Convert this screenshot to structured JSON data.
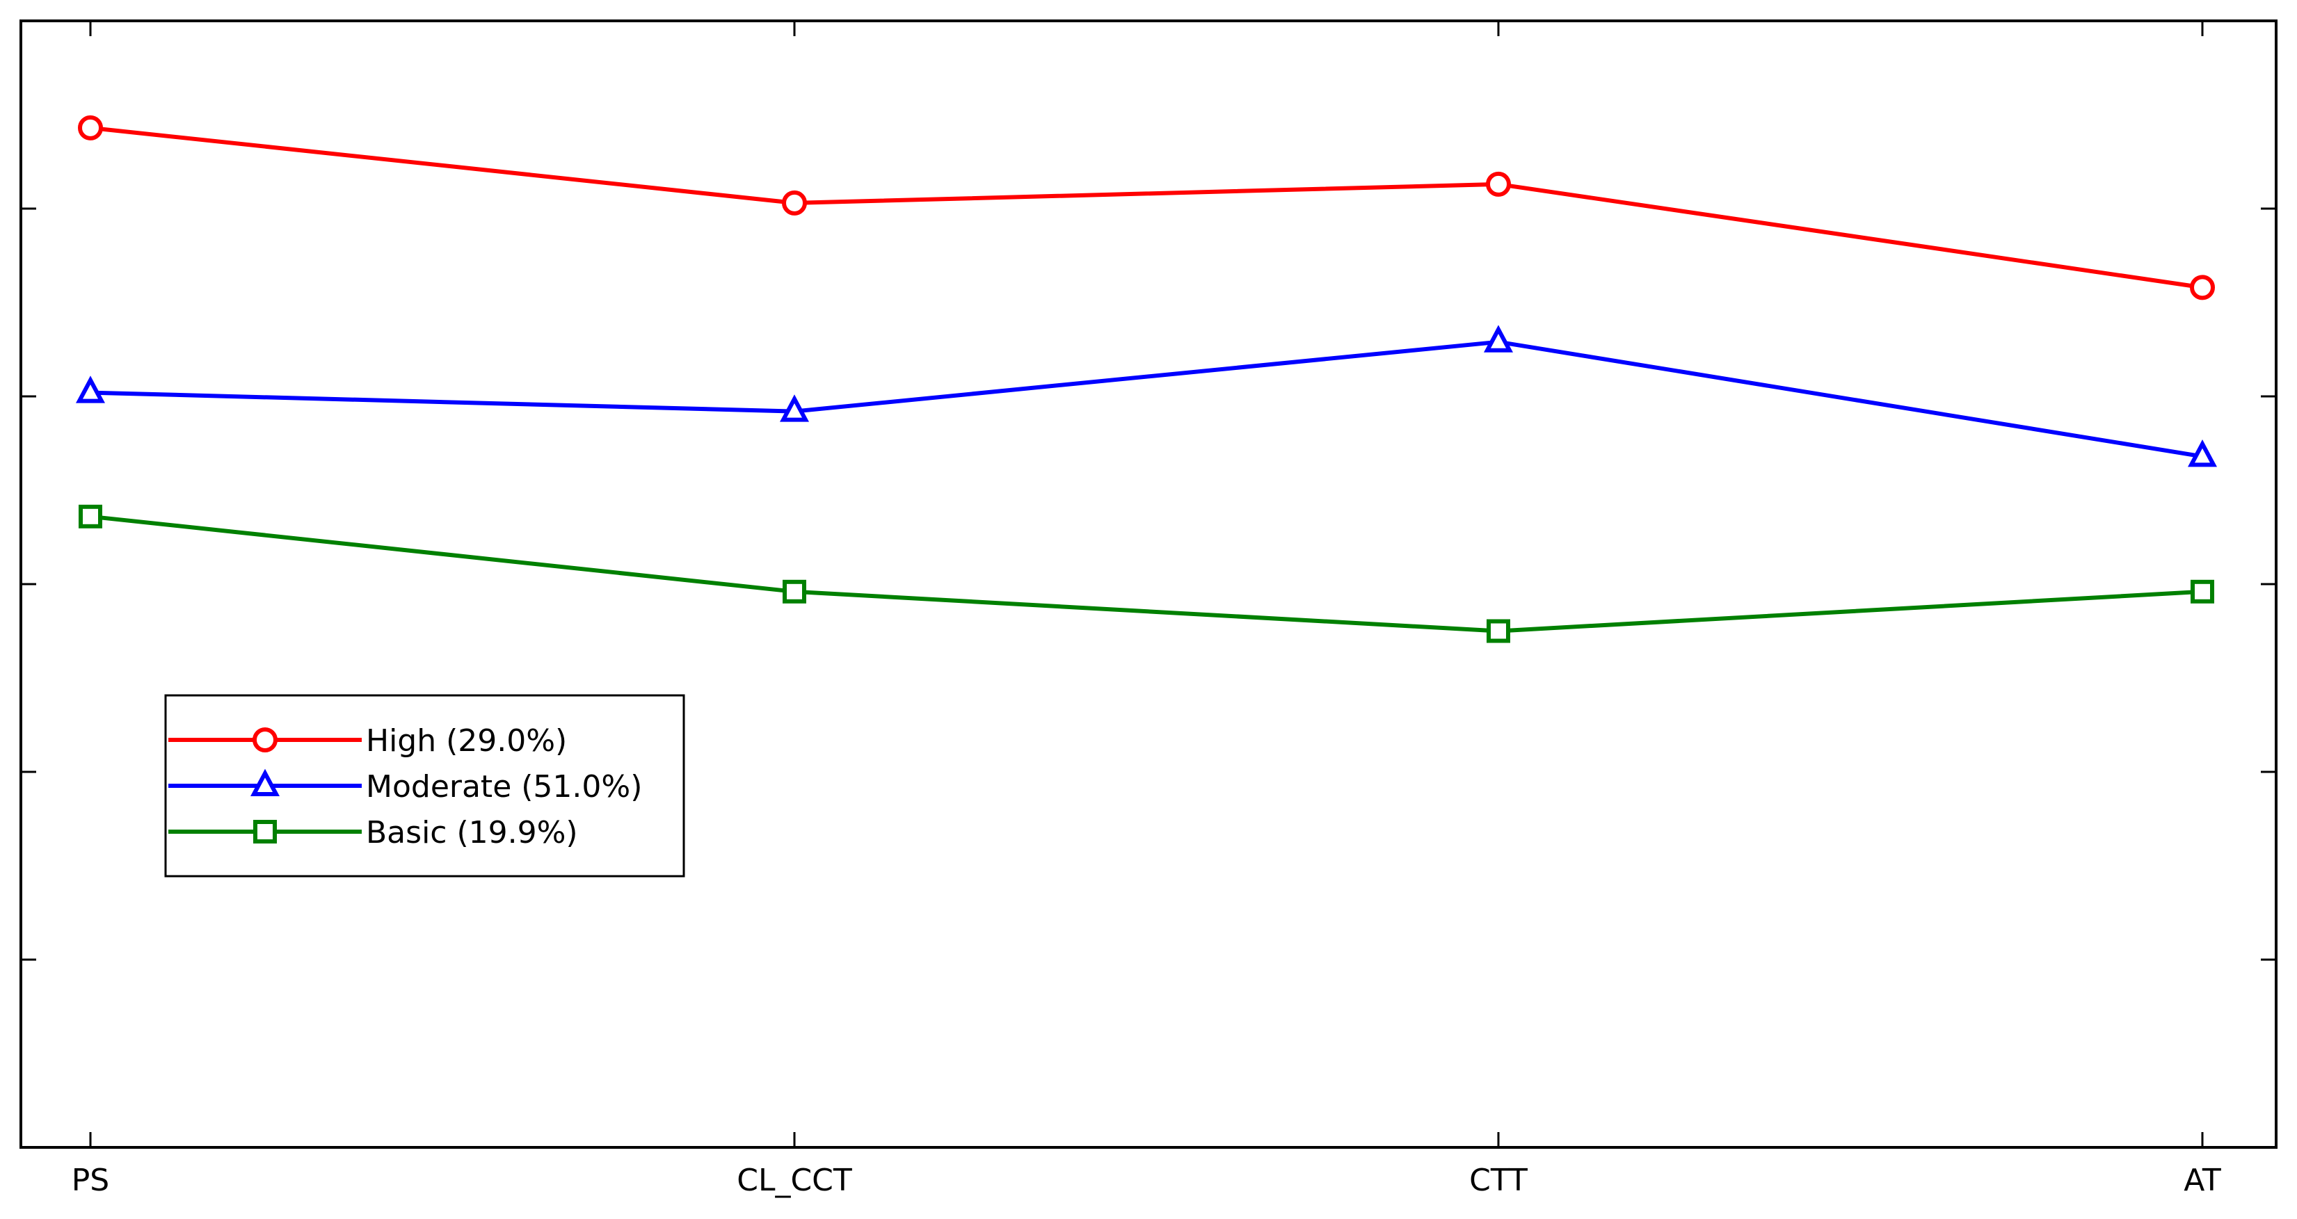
{
  "chart_data": {
    "type": "line",
    "categories": [
      "PS",
      "CL_CCT",
      "CTT",
      "AT"
    ],
    "ylim": [
      0,
      6
    ],
    "yticks": [
      1,
      2,
      3,
      4,
      5
    ],
    "ytick_labels_shown": false,
    "grid": false,
    "legend_position": "lower-left",
    "series": [
      {
        "name": "High (29.0%)",
        "values": [
          5.43,
          5.03,
          5.13,
          4.58
        ],
        "color": "#ff0000",
        "marker": "circle"
      },
      {
        "name": "Moderate (51.0%)",
        "values": [
          4.02,
          3.92,
          4.29,
          3.68
        ],
        "color": "#0000ff",
        "marker": "triangle"
      },
      {
        "name": "Basic (19.9%)",
        "values": [
          3.36,
          2.96,
          2.75,
          2.96
        ],
        "color": "#008000",
        "marker": "square"
      }
    ]
  }
}
